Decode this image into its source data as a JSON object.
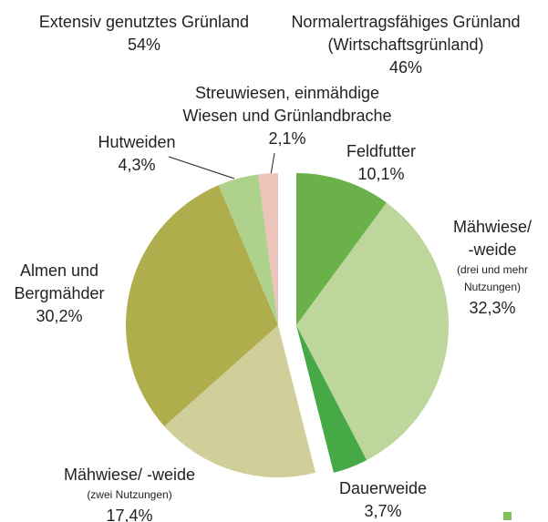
{
  "chart_data": {
    "type": "pie",
    "groups": [
      {
        "name": [
          "Normalertragsfähiges Grünland",
          "(Wirtschaftsgrünland)"
        ],
        "value": 46,
        "value_label": "46%",
        "slices": [
          {
            "name": [
              "Feldfutter"
            ],
            "value": 10.1,
            "value_label": "10,1%",
            "color": "#6ab14a"
          },
          {
            "name": [
              "Mähwiese/",
              "-weide"
            ],
            "note": [
              "(drei und mehr",
              "Nutzungen)"
            ],
            "value": 32.3,
            "value_label": "32,3%",
            "color": "#bcd69b"
          },
          {
            "name": [
              "Dauerweide"
            ],
            "value": 3.7,
            "value_label": "3,7%",
            "color": "#46a946"
          }
        ]
      },
      {
        "name": [
          "Extensiv genutztes Grünland"
        ],
        "value": 54,
        "value_label": "54%",
        "slices": [
          {
            "name": [
              "Mähwiese/ -weide"
            ],
            "note": [
              "(zwei Nutzungen)"
            ],
            "value": 17.4,
            "value_label": "17,4%",
            "color": "#d1cf99"
          },
          {
            "name": [
              "Almen und",
              "Bergmähder"
            ],
            "value": 30.2,
            "value_label": "30,2%",
            "color": "#afad4c"
          },
          {
            "name": [
              "Hutweiden"
            ],
            "value": 4.3,
            "value_label": "4,3%",
            "color": "#aed18b"
          },
          {
            "name": [
              "Streuwiesen, einmähdige",
              "Wiesen und Grünlandbrache"
            ],
            "value": 2.1,
            "value_label": "2,1%",
            "color": "#edc4b9"
          }
        ]
      }
    ]
  }
}
